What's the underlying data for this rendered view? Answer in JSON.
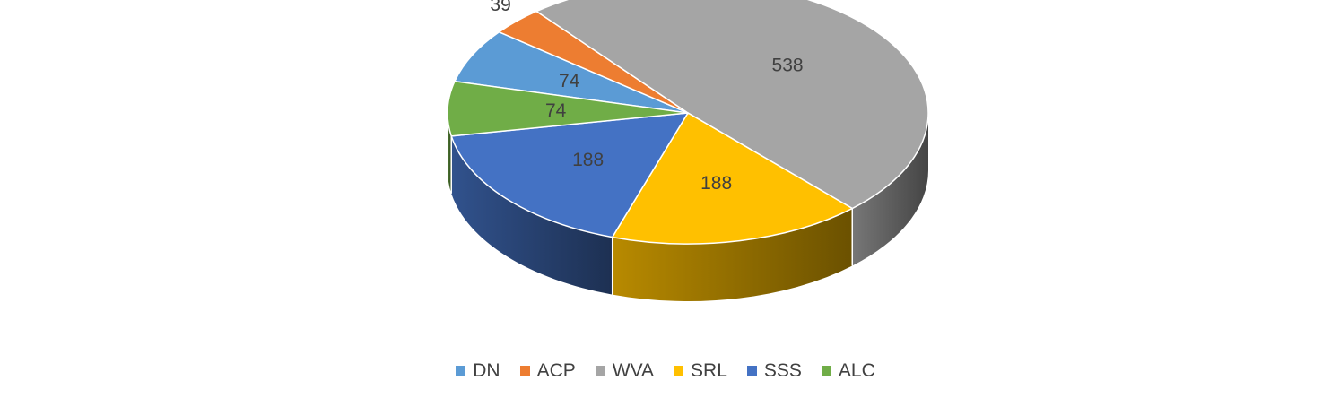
{
  "chart_data": {
    "type": "pie",
    "categories": [
      "DN",
      "ACP",
      "WVA",
      "SRL",
      "SSS",
      "ALC"
    ],
    "values": [
      74,
      39,
      538,
      188,
      188,
      74
    ],
    "data_labels": [
      "74",
      "39",
      "538",
      "188",
      "188",
      "74"
    ],
    "colors": [
      "#5B9BD5",
      "#ED7D31",
      "#A5A5A5",
      "#FFC000",
      "#4472C4",
      "#70AD47"
    ],
    "legend": {
      "placement": "bottom",
      "entries": [
        "DN",
        "ACP",
        "WVA",
        "SRL",
        "SSS",
        "ALC"
      ]
    },
    "style": "3d-exploded-none"
  }
}
